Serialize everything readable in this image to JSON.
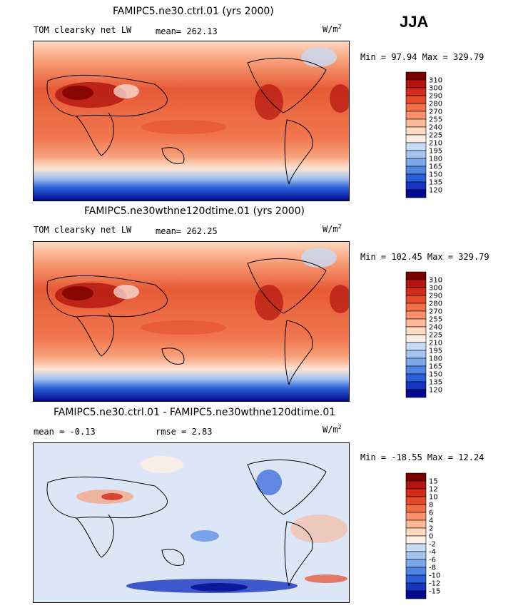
{
  "season": "JJA",
  "panels": [
    {
      "id": "ctrl",
      "title": "FAMIPC5.ne30.ctrl.01 (yrs 2000)",
      "variable": "TOM clearsky net LW",
      "stat1": "mean=  262.13",
      "stat2": "",
      "units": "W/m",
      "units_sup": "2",
      "minmax": "Min =  97.94 Max = 329.79",
      "colorbar": {
        "levels": [
          "310",
          "300",
          "290",
          "280",
          "270",
          "255",
          "240",
          "225",
          "210",
          "195",
          "180",
          "165",
          "150",
          "135",
          "120"
        ],
        "colors": [
          "#7a0000",
          "#b3140f",
          "#d12b1a",
          "#e44a2a",
          "#f06d45",
          "#f8916b",
          "#fbb695",
          "#fdd9c0",
          "#fbeee6",
          "#c8dbf5",
          "#a4c3f0",
          "#7aa6ea",
          "#4f85e2",
          "#2b5fd8",
          "#1634c0",
          "#000a8f"
        ]
      }
    },
    {
      "id": "test",
      "title": "FAMIPC5.ne30wthne120dtime.01 (yrs 2000)",
      "variable": "TOM clearsky net LW",
      "stat1": "mean=  262.25",
      "stat2": "",
      "units": "W/m",
      "units_sup": "2",
      "minmax": "Min = 102.45 Max = 329.79",
      "colorbar": {
        "levels": [
          "310",
          "300",
          "290",
          "280",
          "270",
          "255",
          "240",
          "225",
          "210",
          "195",
          "180",
          "165",
          "150",
          "135",
          "120"
        ],
        "colors": [
          "#7a0000",
          "#b3140f",
          "#d12b1a",
          "#e44a2a",
          "#f06d45",
          "#f8916b",
          "#fbb695",
          "#fdd9c0",
          "#fbeee6",
          "#c8dbf5",
          "#a4c3f0",
          "#7aa6ea",
          "#4f85e2",
          "#2b5fd8",
          "#1634c0",
          "#000a8f"
        ]
      }
    },
    {
      "id": "diff",
      "title": "FAMIPC5.ne30.ctrl.01 - FAMIPC5.ne30wthne120dtime.01",
      "variable": "",
      "stat1": "mean =   -0.13",
      "stat2": "rmse =    2.83",
      "units": "W/m",
      "units_sup": "2",
      "minmax": "Min = -18.55 Max =  12.24",
      "colorbar": {
        "levels": [
          "15",
          "12",
          "10",
          "8",
          "6",
          "4",
          "2",
          "0",
          "-2",
          "-4",
          "-6",
          "-8",
          "-10",
          "-12",
          "-15"
        ],
        "colors": [
          "#7a0000",
          "#b3140f",
          "#d12b1a",
          "#e44a2a",
          "#f06d45",
          "#f8916b",
          "#fbb695",
          "#fdd9c0",
          "#fbeee6",
          "#c8dbf5",
          "#a4c3f0",
          "#7aa6ea",
          "#4f85e2",
          "#2b5fd8",
          "#1634c0",
          "#000a8f"
        ]
      }
    }
  ],
  "chart_data": {
    "type": "heatmap",
    "title": "TOM clearsky net LW, JJA",
    "units": "W/m2",
    "maps": [
      {
        "name": "FAMIPC5.ne30.ctrl.01 (yrs 2000)",
        "mean": 262.13,
        "min": 97.94,
        "max": 329.79,
        "levels": [
          120,
          135,
          150,
          165,
          180,
          195,
          210,
          225,
          240,
          255,
          270,
          280,
          290,
          300,
          310
        ]
      },
      {
        "name": "FAMIPC5.ne30wthne120dtime.01 (yrs 2000)",
        "mean": 262.25,
        "min": 102.45,
        "max": 329.79,
        "levels": [
          120,
          135,
          150,
          165,
          180,
          195,
          210,
          225,
          240,
          255,
          270,
          280,
          290,
          300,
          310
        ]
      },
      {
        "name": "FAMIPC5.ne30.ctrl.01 - FAMIPC5.ne30wthne120dtime.01",
        "mean": -0.13,
        "rmse": 2.83,
        "min": -18.55,
        "max": 12.24,
        "levels": [
          -15,
          -12,
          -10,
          -8,
          -6,
          -4,
          -2,
          0,
          2,
          4,
          6,
          8,
          10,
          12,
          15
        ]
      }
    ]
  }
}
